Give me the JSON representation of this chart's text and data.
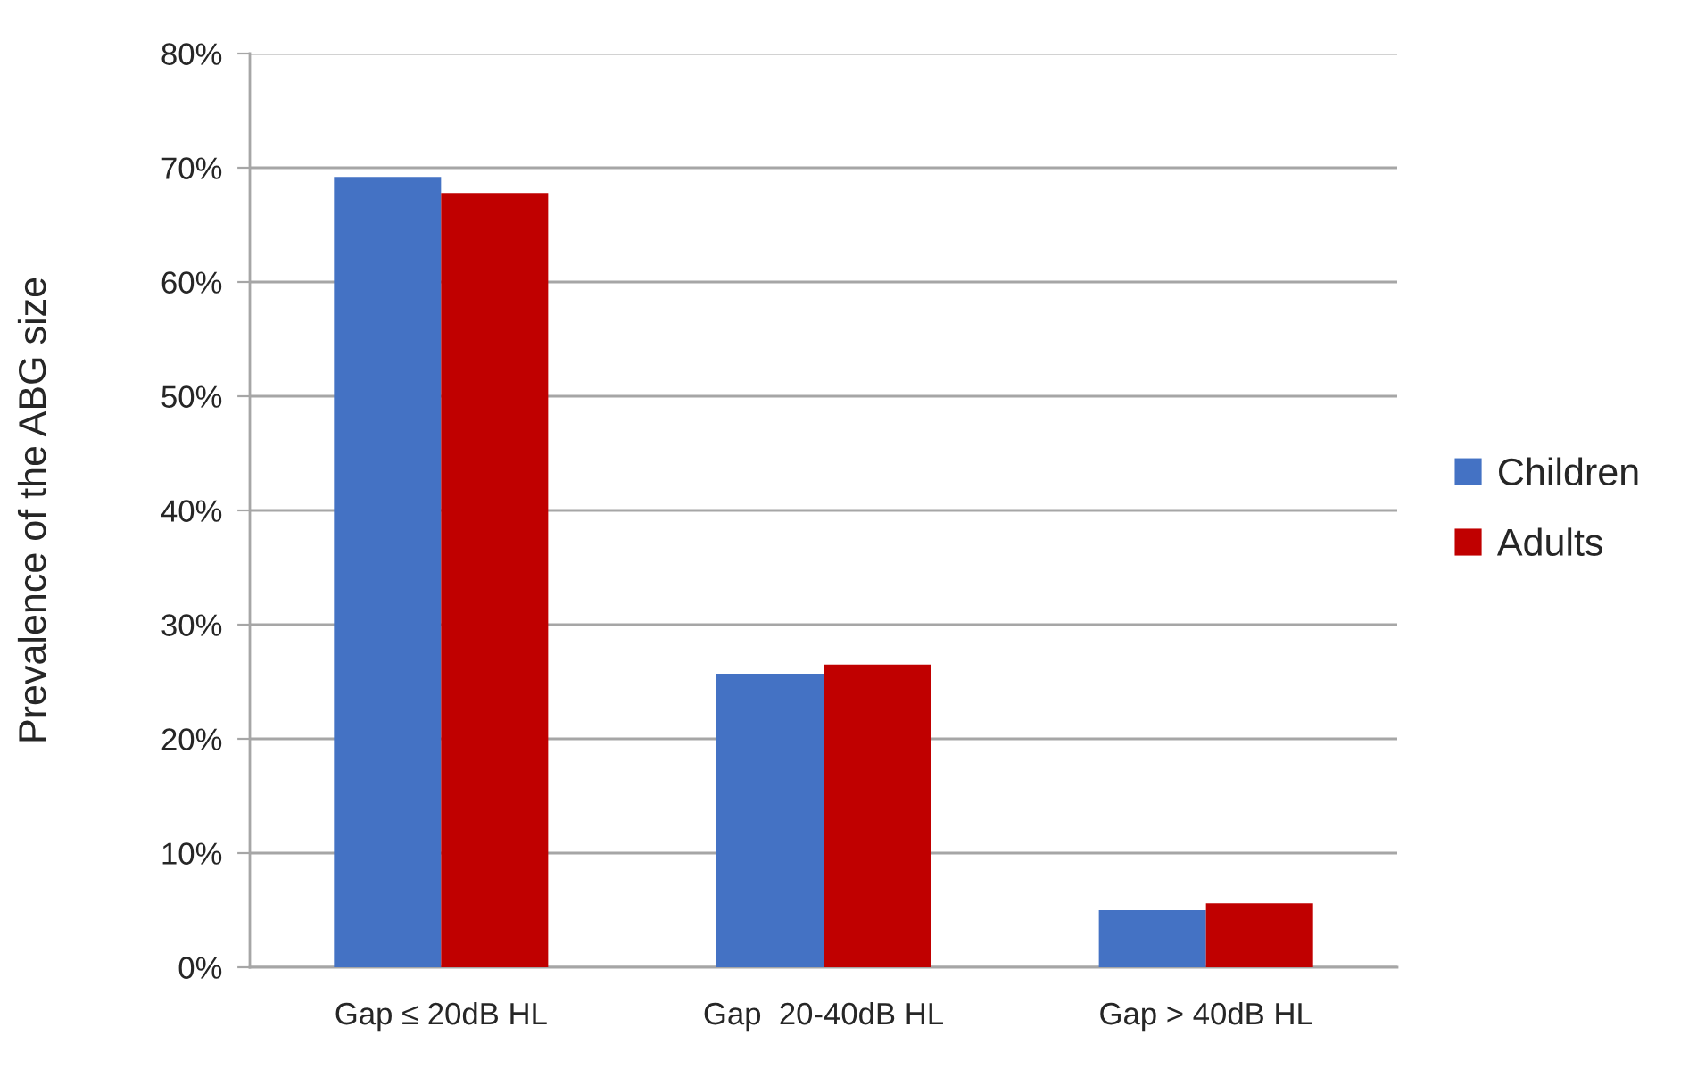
{
  "chart_data": {
    "type": "bar",
    "ylabel": "Prevalence of the ABG size",
    "categories": [
      "Gap ≤ 20dB HL",
      "Gap  20-40dB HL",
      "Gap > 40dB HL"
    ],
    "series": [
      {
        "name": "Children",
        "color": "#4472c4",
        "values": [
          69.2,
          25.7,
          5.0
        ]
      },
      {
        "name": "Adults",
        "color": "#c00000",
        "values": [
          67.8,
          26.5,
          5.6
        ]
      }
    ],
    "ylim": [
      0,
      80
    ],
    "yticks": [
      {
        "value": 0,
        "label": "0%"
      },
      {
        "value": 10,
        "label": "10%"
      },
      {
        "value": 20,
        "label": "20%"
      },
      {
        "value": 30,
        "label": "30%"
      },
      {
        "value": 40,
        "label": "40%"
      },
      {
        "value": 50,
        "label": "50%"
      },
      {
        "value": 60,
        "label": "60%"
      },
      {
        "value": 70,
        "label": "70%"
      },
      {
        "value": 80,
        "label": "80%"
      }
    ],
    "grid": "y",
    "legend": "right"
  }
}
